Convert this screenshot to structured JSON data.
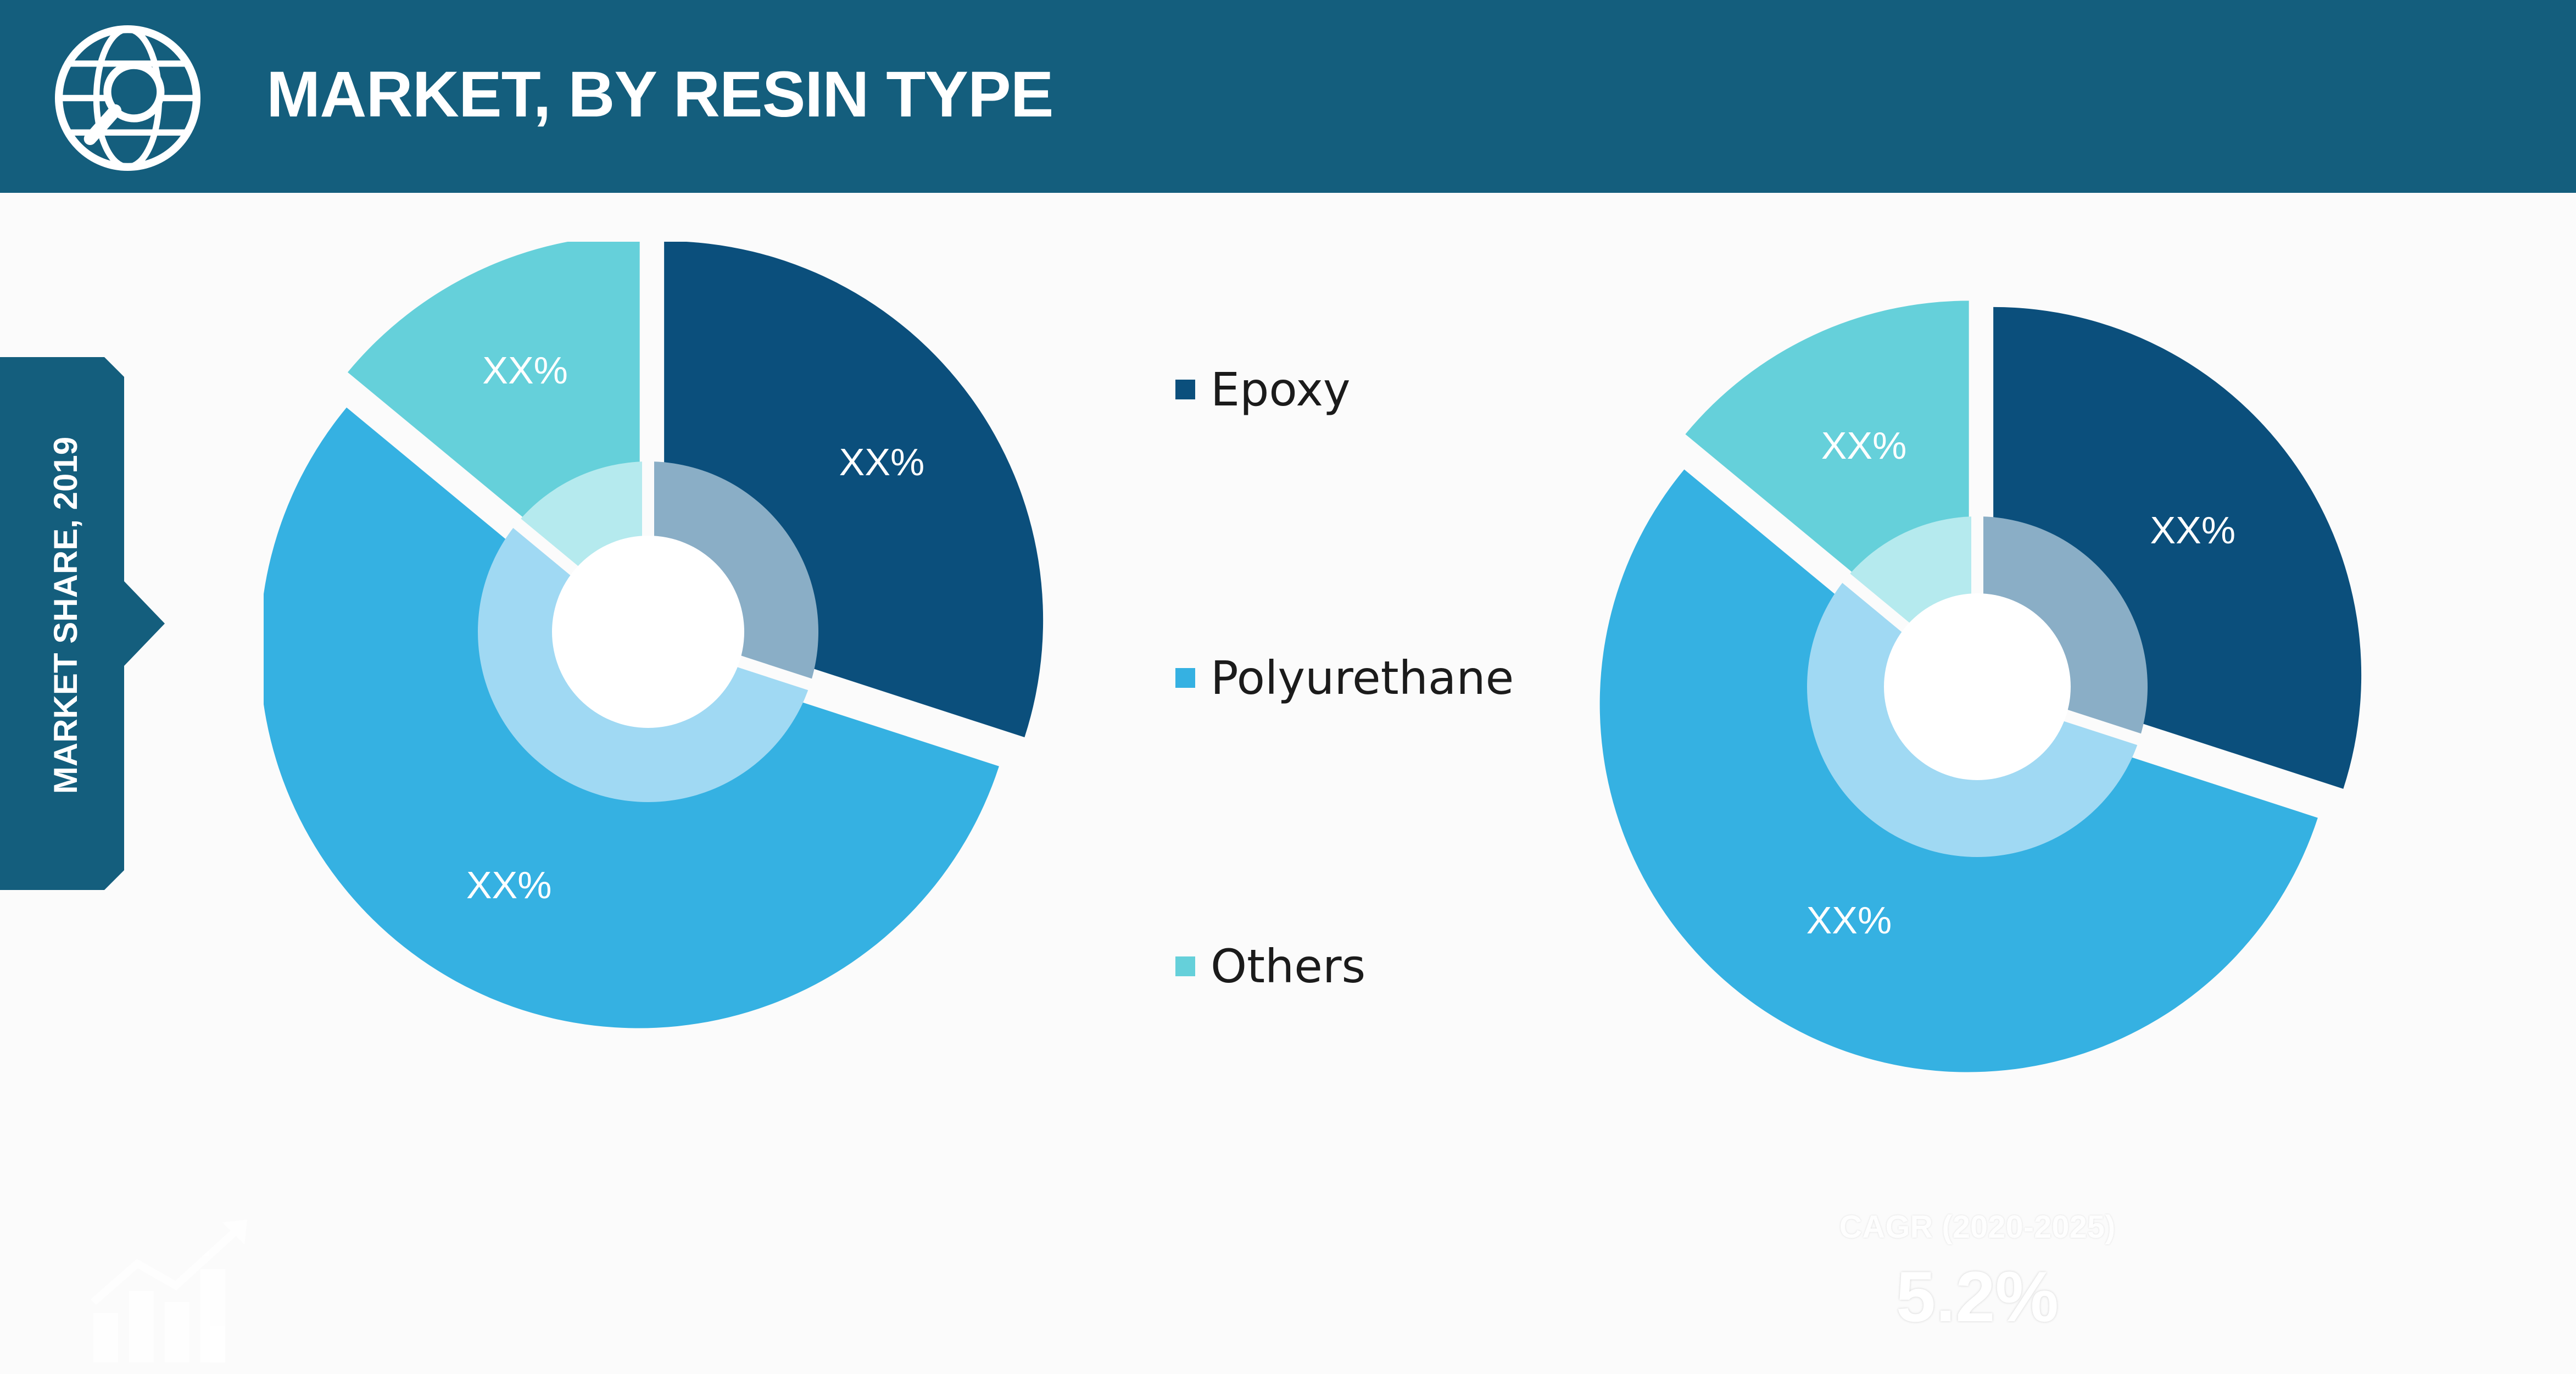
{
  "header": {
    "title": "MARKET, BY RESIN TYPE",
    "icon": "globe-search-icon"
  },
  "side_label": "MARKET SHARE, 2019",
  "colors": {
    "header_bg": "#145e7d",
    "epoxy": "#0b4f7c",
    "polyurethane": "#35b1e2",
    "others": "#65d0da",
    "epoxy_inner": "#8aaec6",
    "polyurethane_inner": "#a0d9f3",
    "others_inner": "#b5eaee"
  },
  "legend": [
    {
      "label": "Epoxy",
      "color": "#0b4f7c"
    },
    {
      "label": "Polyurethane",
      "color": "#35b1e2"
    },
    {
      "label": "Others",
      "color": "#65d0da"
    }
  ],
  "chart_data": [
    {
      "type": "pie",
      "categories": [
        "Epoxy",
        "Polyurethane",
        "Others"
      ],
      "values": [
        30,
        56,
        14
      ],
      "labels": [
        "XX%",
        "XX%",
        "XX%"
      ]
    },
    {
      "type": "pie",
      "categories": [
        "Epoxy",
        "Polyurethane",
        "Others"
      ],
      "values": [
        30,
        56,
        14
      ],
      "labels": [
        "XX%",
        "XX%",
        "XX%"
      ]
    }
  ],
  "cagr": {
    "label": "CAGR (2020-2025)",
    "value": "5.2%"
  },
  "footer_icon": "growth-chart-icon"
}
